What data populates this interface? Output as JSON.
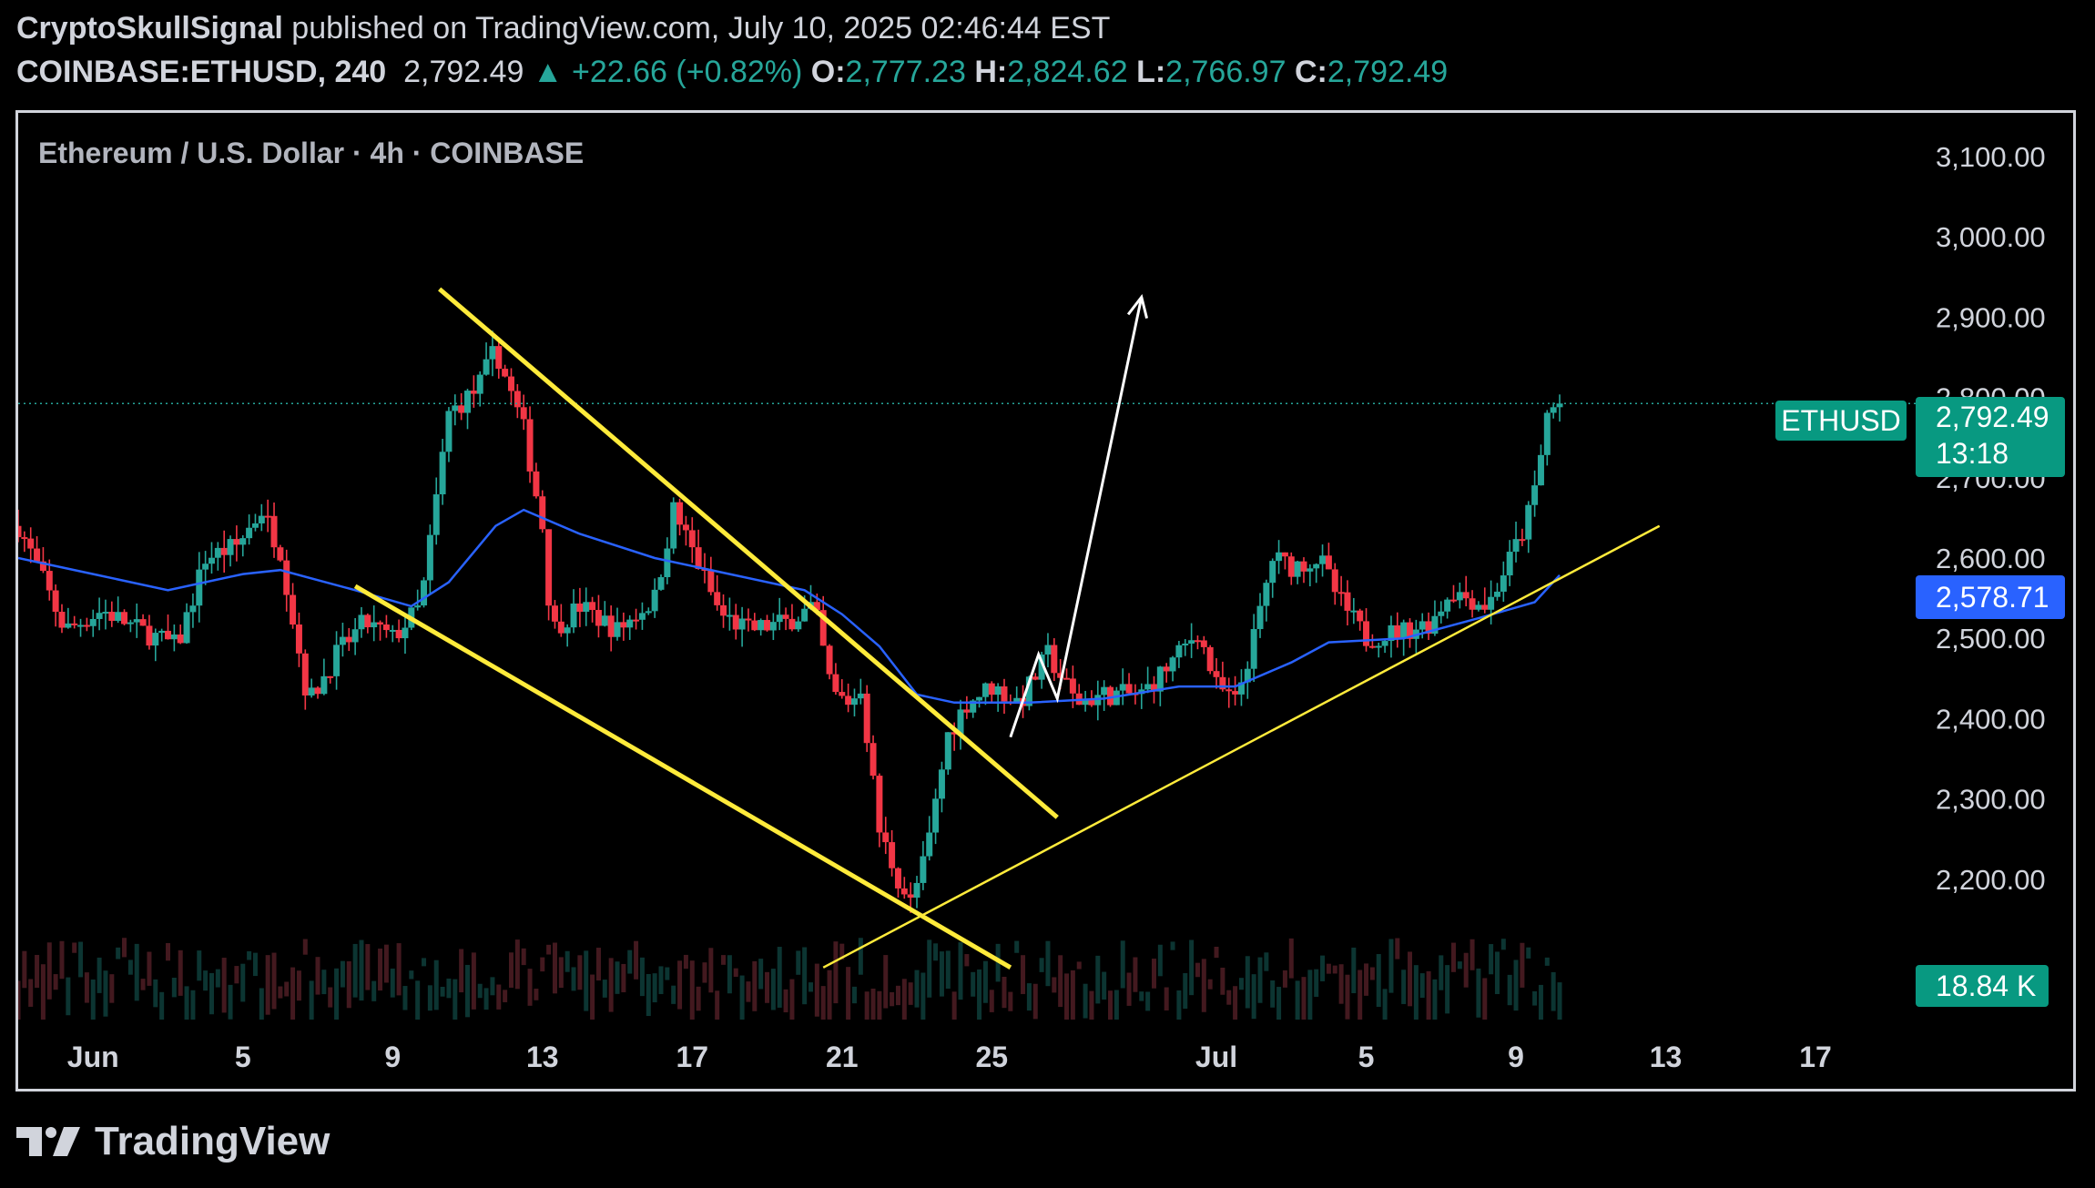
{
  "header": {
    "author": "CryptoSkullSignal",
    "published_text": "published on TradingView.com, July 10, 2025 02:46:44 EST",
    "symbol": "COINBASE:ETHUSD, 240",
    "last": "2,792.49",
    "change": "▲ +22.66 (+0.82%)",
    "o_label": "O:",
    "o_value": "2,777.23",
    "h_label": "H:",
    "h_value": "2,824.62",
    "l_label": "L:",
    "l_value": "2,766.97",
    "c_label": "C:",
    "c_value": "2,792.49"
  },
  "pane_title": "Ethereum / U.S. Dollar · 4h · COINBASE",
  "tags": {
    "symbol_tag": "ETHUSD",
    "price_tag": "2,792.49",
    "countdown": "13:18",
    "ma_tag": "2,578.71",
    "volume_tag": "18.84 K"
  },
  "footer": {
    "brand": "TradingView"
  },
  "colors": {
    "up": "#26a69a",
    "down": "#f23645",
    "ma": "#2962ff",
    "trendline": "#ffeb3b",
    "background": "#000000"
  },
  "chart_data": {
    "type": "candlestick",
    "title": "Ethereum / U.S. Dollar · 4h · COINBASE",
    "interval": "4h",
    "ylim": [
      2090,
      3160
    ],
    "y_ticks": [
      2200,
      2300,
      2400,
      2500,
      2600,
      2700,
      2800,
      2900,
      3000,
      3100
    ],
    "y_tick_labels": [
      "2,200.00",
      "2,300.00",
      "2,400.00",
      "2,500.00",
      "2,600.00",
      "2,700.00",
      "2,800.00",
      "2,900.00",
      "3,000.00",
      "3,100.00"
    ],
    "x_range": [
      "2025-05-30T00:00",
      "2025-07-19T08:00"
    ],
    "x_ticks": [
      {
        "date": "2025-06-01",
        "label": "Jun"
      },
      {
        "date": "2025-06-05",
        "label": "5"
      },
      {
        "date": "2025-06-09",
        "label": "9"
      },
      {
        "date": "2025-06-13",
        "label": "13"
      },
      {
        "date": "2025-06-17",
        "label": "17"
      },
      {
        "date": "2025-06-21",
        "label": "21"
      },
      {
        "date": "2025-06-25",
        "label": "25"
      },
      {
        "date": "2025-07-01",
        "label": "Jul"
      },
      {
        "date": "2025-07-05",
        "label": "5"
      },
      {
        "date": "2025-07-09",
        "label": "9"
      },
      {
        "date": "2025-07-13",
        "label": "13"
      },
      {
        "date": "2025-07-17",
        "label": "17"
      }
    ],
    "price_keypoints": [
      {
        "t": "2025-05-30T00:00",
        "p": 2640
      },
      {
        "t": "2025-05-30T12:00",
        "p": 2590
      },
      {
        "t": "2025-05-31T06:00",
        "p": 2510
      },
      {
        "t": "2025-06-01T06:00",
        "p": 2535
      },
      {
        "t": "2025-06-02T06:00",
        "p": 2510
      },
      {
        "t": "2025-06-03T06:00",
        "p": 2490
      },
      {
        "t": "2025-06-04T00:00",
        "p": 2600
      },
      {
        "t": "2025-06-04T20:00",
        "p": 2615
      },
      {
        "t": "2025-06-05T12:00",
        "p": 2660
      },
      {
        "t": "2025-06-06T00:00",
        "p": 2610
      },
      {
        "t": "2025-06-06T18:00",
        "p": 2420
      },
      {
        "t": "2025-06-07T12:00",
        "p": 2480
      },
      {
        "t": "2025-06-08T06:00",
        "p": 2520
      },
      {
        "t": "2025-06-09T00:00",
        "p": 2500
      },
      {
        "t": "2025-06-09T18:00",
        "p": 2540
      },
      {
        "t": "2025-06-10T12:00",
        "p": 2780
      },
      {
        "t": "2025-06-11T06:00",
        "p": 2810
      },
      {
        "t": "2025-06-11T18:00",
        "p": 2860
      },
      {
        "t": "2025-06-12T12:00",
        "p": 2760
      },
      {
        "t": "2025-06-13T00:00",
        "p": 2640
      },
      {
        "t": "2025-06-13T06:00",
        "p": 2510
      },
      {
        "t": "2025-06-14T00:00",
        "p": 2540
      },
      {
        "t": "2025-06-15T00:00",
        "p": 2510
      },
      {
        "t": "2025-06-16T00:00",
        "p": 2550
      },
      {
        "t": "2025-06-16T12:00",
        "p": 2660
      },
      {
        "t": "2025-06-17T00:00",
        "p": 2610
      },
      {
        "t": "2025-06-17T18:00",
        "p": 2530
      },
      {
        "t": "2025-06-18T12:00",
        "p": 2510
      },
      {
        "t": "2025-06-19T12:00",
        "p": 2520
      },
      {
        "t": "2025-06-20T06:00",
        "p": 2540
      },
      {
        "t": "2025-06-20T18:00",
        "p": 2430
      },
      {
        "t": "2025-06-21T06:00",
        "p": 2420
      },
      {
        "t": "2025-06-21T12:00",
        "p": 2440
      },
      {
        "t": "2025-06-22T00:00",
        "p": 2260
      },
      {
        "t": "2025-06-22T12:00",
        "p": 2200
      },
      {
        "t": "2025-06-22T20:00",
        "p": 2170
      },
      {
        "t": "2025-06-23T06:00",
        "p": 2230
      },
      {
        "t": "2025-06-23T20:00",
        "p": 2380
      },
      {
        "t": "2025-06-24T08:00",
        "p": 2420
      },
      {
        "t": "2025-06-25T00:00",
        "p": 2440
      },
      {
        "t": "2025-06-25T18:00",
        "p": 2420
      },
      {
        "t": "2025-06-26T12:00",
        "p": 2480
      },
      {
        "t": "2025-06-27T06:00",
        "p": 2420
      },
      {
        "t": "2025-06-28T00:00",
        "p": 2430
      },
      {
        "t": "2025-06-29T00:00",
        "p": 2430
      },
      {
        "t": "2025-06-30T00:00",
        "p": 2480
      },
      {
        "t": "2025-06-30T12:00",
        "p": 2510
      },
      {
        "t": "2025-07-01T00:00",
        "p": 2440
      },
      {
        "t": "2025-07-01T12:00",
        "p": 2420
      },
      {
        "t": "2025-07-02T00:00",
        "p": 2500
      },
      {
        "t": "2025-07-02T12:00",
        "p": 2600
      },
      {
        "t": "2025-07-03T00:00",
        "p": 2590
      },
      {
        "t": "2025-07-03T18:00",
        "p": 2600
      },
      {
        "t": "2025-07-04T06:00",
        "p": 2550
      },
      {
        "t": "2025-07-05T00:00",
        "p": 2500
      },
      {
        "t": "2025-07-06T00:00",
        "p": 2510
      },
      {
        "t": "2025-07-06T18:00",
        "p": 2520
      },
      {
        "t": "2025-07-07T06:00",
        "p": 2560
      },
      {
        "t": "2025-07-07T18:00",
        "p": 2550
      },
      {
        "t": "2025-07-08T06:00",
        "p": 2540
      },
      {
        "t": "2025-07-08T18:00",
        "p": 2590
      },
      {
        "t": "2025-07-09T06:00",
        "p": 2640
      },
      {
        "t": "2025-07-09T14:00",
        "p": 2700
      },
      {
        "t": "2025-07-09T20:00",
        "p": 2780
      },
      {
        "t": "2025-07-10T04:00",
        "p": 2792.49
      }
    ],
    "moving_average": [
      {
        "t": "2025-05-30T00:00",
        "p": 2600
      },
      {
        "t": "2025-06-01T00:00",
        "p": 2580
      },
      {
        "t": "2025-06-03T00:00",
        "p": 2560
      },
      {
        "t": "2025-06-05T00:00",
        "p": 2580
      },
      {
        "t": "2025-06-06T00:00",
        "p": 2585
      },
      {
        "t": "2025-06-08T00:00",
        "p": 2560
      },
      {
        "t": "2025-06-09T12:00",
        "p": 2540
      },
      {
        "t": "2025-06-10T12:00",
        "p": 2570
      },
      {
        "t": "2025-06-11T18:00",
        "p": 2640
      },
      {
        "t": "2025-06-12T12:00",
        "p": 2660
      },
      {
        "t": "2025-06-14T00:00",
        "p": 2630
      },
      {
        "t": "2025-06-16T00:00",
        "p": 2600
      },
      {
        "t": "2025-06-18T00:00",
        "p": 2580
      },
      {
        "t": "2025-06-20T00:00",
        "p": 2560
      },
      {
        "t": "2025-06-21T00:00",
        "p": 2530
      },
      {
        "t": "2025-06-22T00:00",
        "p": 2490
      },
      {
        "t": "2025-06-23T00:00",
        "p": 2430
      },
      {
        "t": "2025-06-24T00:00",
        "p": 2420
      },
      {
        "t": "2025-06-26T00:00",
        "p": 2420
      },
      {
        "t": "2025-06-28T00:00",
        "p": 2425
      },
      {
        "t": "2025-06-30T00:00",
        "p": 2440
      },
      {
        "t": "2025-07-01T12:00",
        "p": 2440
      },
      {
        "t": "2025-07-03T00:00",
        "p": 2470
      },
      {
        "t": "2025-07-04T00:00",
        "p": 2495
      },
      {
        "t": "2025-07-06T00:00",
        "p": 2500
      },
      {
        "t": "2025-07-08T00:00",
        "p": 2525
      },
      {
        "t": "2025-07-09T12:00",
        "p": 2545
      },
      {
        "t": "2025-07-10T04:00",
        "p": 2578.71
      }
    ],
    "last_price": 2792.49,
    "moving_average_last": 2578.71,
    "volume_last": "18.84 K",
    "annotations": [
      {
        "type": "trendline",
        "name": "channel-upper",
        "from": {
          "t": "2025-06-10T06:00",
          "p": 2935
        },
        "to": {
          "t": "2025-06-26T18:00",
          "p": 2277
        }
      },
      {
        "type": "trendline",
        "name": "channel-lower",
        "from": {
          "t": "2025-06-08T00:00",
          "p": 2565
        },
        "to": {
          "t": "2025-06-25T12:00",
          "p": 2090
        }
      },
      {
        "type": "trendline",
        "name": "support",
        "from": {
          "t": "2025-06-20T12:00",
          "p": 2090
        },
        "to": {
          "t": "2025-07-12T20:00",
          "p": 2640
        }
      },
      {
        "type": "path",
        "name": "projection",
        "points": [
          {
            "t": "2025-06-25T12:00",
            "p": 2377
          },
          {
            "t": "2025-06-26T06:00",
            "p": 2480
          },
          {
            "t": "2025-06-26T18:00",
            "p": 2425
          },
          {
            "t": "2025-06-29T00:00",
            "p": 2925
          }
        ]
      }
    ]
  }
}
